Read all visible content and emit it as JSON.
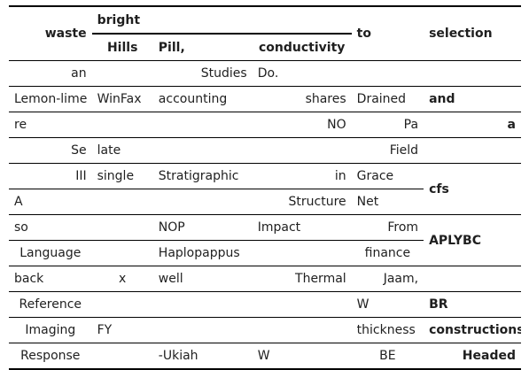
{
  "header": {
    "col1": "waste",
    "group": "bright",
    "sub1": "Hills",
    "sub2": "Pill,",
    "sub3": "conductivity",
    "col5": "to",
    "col6": "selection"
  },
  "rows": [
    [
      "an",
      "",
      "Studies",
      "Do.",
      "",
      ""
    ],
    [
      "Lemon-lime",
      "WinFax",
      "accounting",
      "shares",
      "Drained",
      "and"
    ],
    [
      "re",
      "",
      "",
      "NO",
      "Pa",
      "a"
    ],
    [
      "Se",
      "late",
      "",
      "",
      "Field",
      ""
    ],
    [
      "III",
      "single",
      "Stratigraphic",
      "in",
      "Grace",
      "cfs"
    ],
    [
      "A",
      "",
      "",
      "Structure",
      "Net",
      ""
    ],
    [
      "so",
      "",
      "NOP",
      "Impact",
      "From",
      "APLYBC"
    ],
    [
      "Language",
      "",
      "Haplopappus",
      "",
      "finance",
      ""
    ],
    [
      "back",
      "x",
      "well",
      "Thermal",
      "Jaam,",
      ""
    ],
    [
      "Reference",
      "",
      "",
      "",
      "W",
      "BR"
    ],
    [
      "Imaging",
      "FY",
      "",
      "",
      "thickness",
      "constructions"
    ],
    [
      "Response",
      "",
      "-Ukiah",
      "W",
      "BE",
      "Headed"
    ]
  ]
}
